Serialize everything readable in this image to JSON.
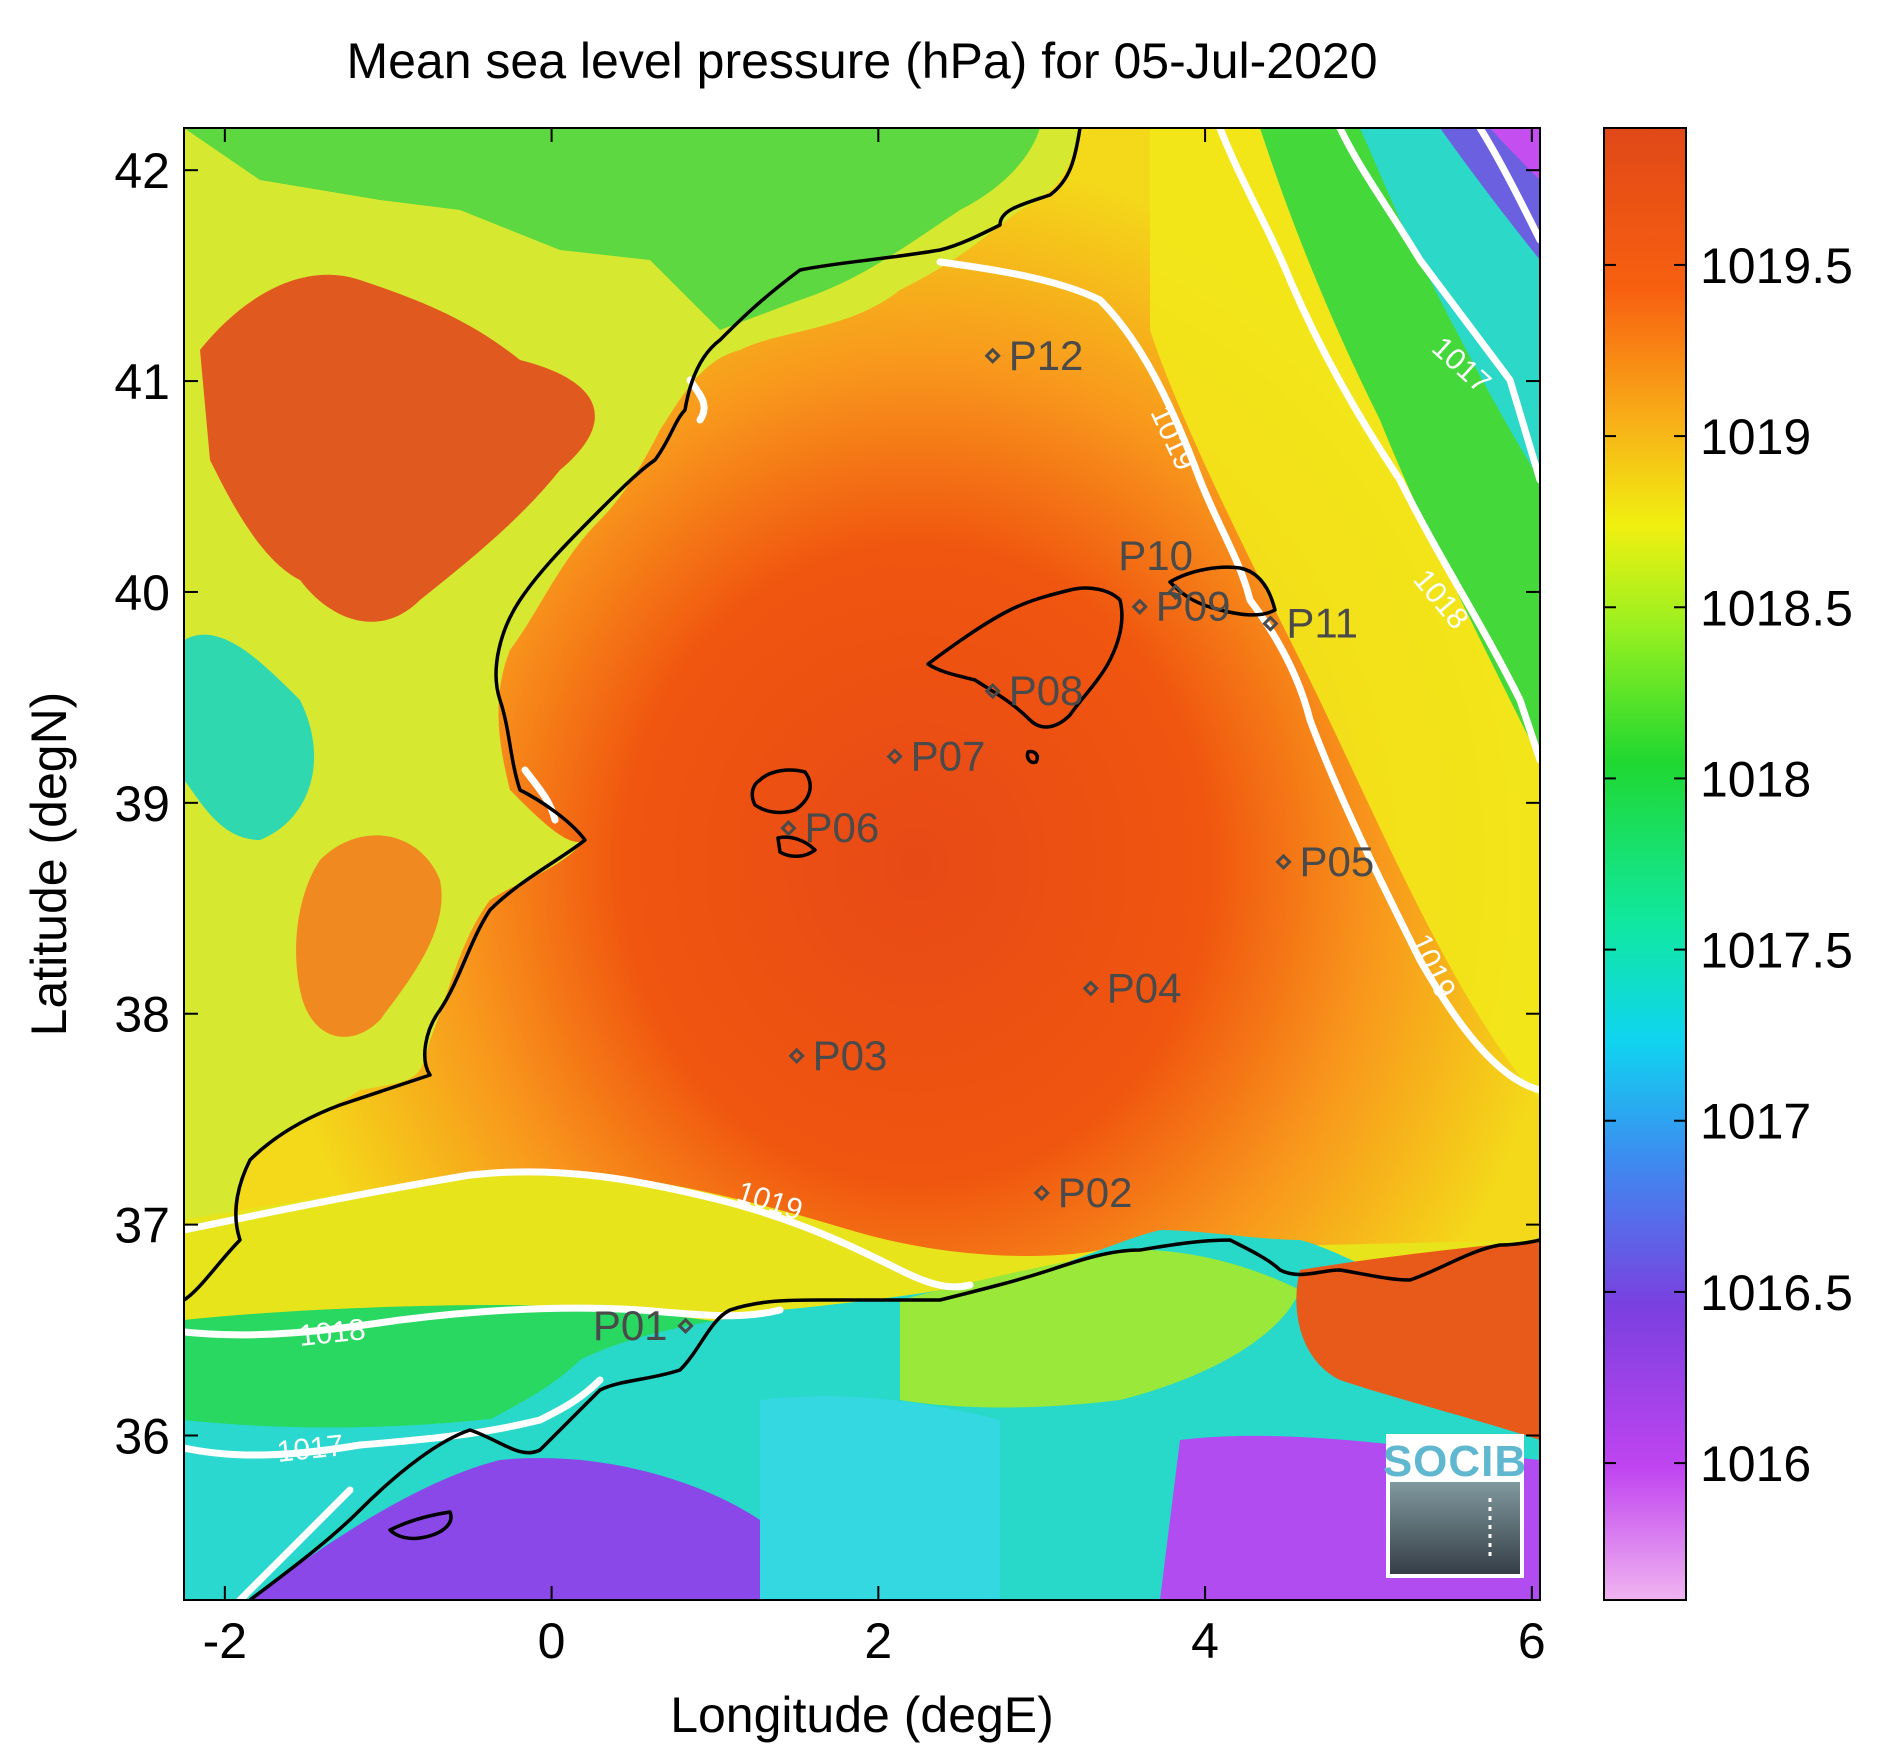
{
  "title": "Mean sea level pressure (hPa) for 05-Jul-2020",
  "xlabel": "Longitude (degE)",
  "ylabel": "Latitude (degN)",
  "x_ticks": [
    "-2",
    "0",
    "2",
    "4",
    "6"
  ],
  "y_ticks": [
    "42",
    "41",
    "40",
    "39",
    "38",
    "37",
    "36"
  ],
  "colorbar": {
    "ticks": [
      "1019.5",
      "1019",
      "1018.5",
      "1018",
      "1017.5",
      "1017",
      "1016.5",
      "1016"
    ],
    "range": [
      1015.6,
      1019.9
    ],
    "colors": [
      "#f0b4f0",
      "#c044f0",
      "#7a40e0",
      "#3c8cf0",
      "#10e0f0",
      "#10e8a0",
      "#20d830",
      "#98f020",
      "#f0f010",
      "#f8b018",
      "#f86010",
      "#e04818"
    ]
  },
  "contour_labels": [
    "1017",
    "1018",
    "1019",
    "1019",
    "1019",
    "1018",
    "1017"
  ],
  "stations": [
    {
      "id": "P01",
      "lon": 0.82,
      "lat": 36.52
    },
    {
      "id": "P02",
      "lon": 3.0,
      "lat": 37.15
    },
    {
      "id": "P03",
      "lon": 1.5,
      "lat": 37.8
    },
    {
      "id": "P04",
      "lon": 3.3,
      "lat": 38.12
    },
    {
      "id": "P05",
      "lon": 4.48,
      "lat": 38.72
    },
    {
      "id": "P06",
      "lon": 1.45,
      "lat": 38.88
    },
    {
      "id": "P07",
      "lon": 2.1,
      "lat": 39.22
    },
    {
      "id": "P08",
      "lon": 2.7,
      "lat": 39.53
    },
    {
      "id": "P09",
      "lon": 3.6,
      "lat": 39.93
    },
    {
      "id": "P10",
      "lon": 3.82,
      "lat": 40.0
    },
    {
      "id": "P11",
      "lon": 4.4,
      "lat": 39.85
    },
    {
      "id": "P12",
      "lon": 2.7,
      "lat": 41.12
    }
  ],
  "logo": {
    "text": "SOCIB"
  },
  "colors": {
    "contour": "#ffffff",
    "coast": "#000000",
    "station_marker": "#4a4a4a"
  }
}
